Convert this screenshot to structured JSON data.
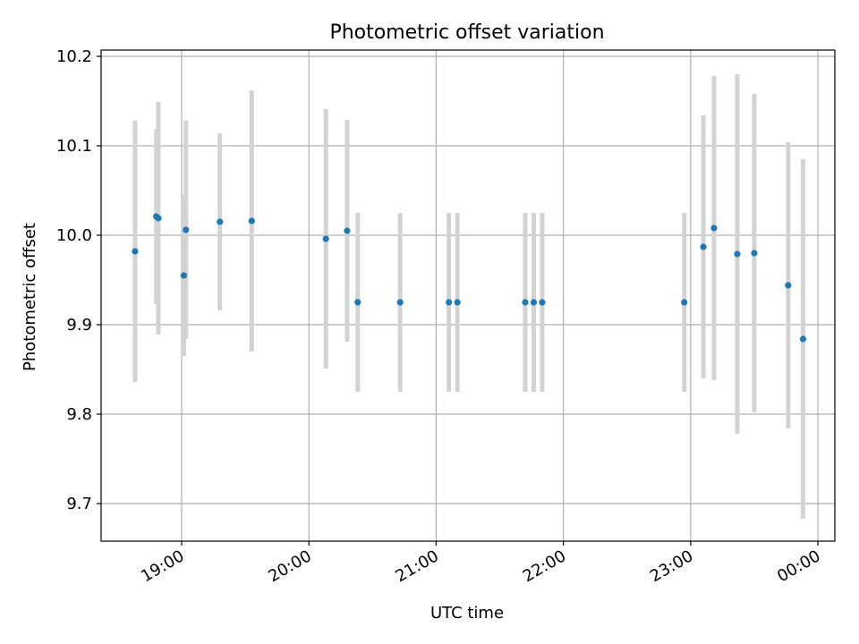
{
  "chart_data": {
    "type": "scatter",
    "title": "Photometric offset variation",
    "xlabel": "UTC time",
    "ylabel": "Photometric offset",
    "x_axis_type": "time",
    "xlim": [
      "18:22",
      "00:08"
    ],
    "ylim": [
      9.658,
      10.207
    ],
    "grid": true,
    "y_ticks": [
      9.7,
      9.8,
      9.9,
      10.0,
      10.1,
      10.2
    ],
    "y_tick_labels": [
      "9.7",
      "9.8",
      "9.9",
      "10.0",
      "10.1",
      "10.2"
    ],
    "x_ticks": [
      "19:00",
      "20:00",
      "21:00",
      "22:00",
      "23:00",
      "00:00"
    ],
    "x_tick_labels": [
      "19:00",
      "20:00",
      "21:00",
      "22:00",
      "23:00",
      "00:00"
    ],
    "marker_color": "#1f77b4",
    "errorbar_color": "#d3d3d3",
    "series": [
      {
        "points": [
          {
            "x": "18:38",
            "y": 9.982,
            "err": 0.146
          },
          {
            "x": "18:48",
            "y": 10.021,
            "err": 0.098
          },
          {
            "x": "18:49",
            "y": 10.019,
            "err": 0.13
          },
          {
            "x": "19:01",
            "y": 9.955,
            "err": 0.09
          },
          {
            "x": "19:02",
            "y": 10.006,
            "err": 0.122
          },
          {
            "x": "19:18",
            "y": 10.015,
            "err": 0.099
          },
          {
            "x": "19:33",
            "y": 10.016,
            "err": 0.146
          },
          {
            "x": "20:08",
            "y": 9.996,
            "err": 0.145
          },
          {
            "x": "20:18",
            "y": 10.005,
            "err": 0.124
          },
          {
            "x": "20:23",
            "y": 9.925,
            "err": 0.1
          },
          {
            "x": "20:43",
            "y": 9.925,
            "err": 0.1
          },
          {
            "x": "21:06",
            "y": 9.925,
            "err": 0.1
          },
          {
            "x": "21:10",
            "y": 9.925,
            "err": 0.1
          },
          {
            "x": "21:42",
            "y": 9.925,
            "err": 0.1
          },
          {
            "x": "21:46",
            "y": 9.925,
            "err": 0.1
          },
          {
            "x": "21:50",
            "y": 9.925,
            "err": 0.1
          },
          {
            "x": "22:57",
            "y": 9.925,
            "err": 0.1
          },
          {
            "x": "23:06",
            "y": 9.987,
            "err": 0.147
          },
          {
            "x": "23:11",
            "y": 10.008,
            "err": 0.17
          },
          {
            "x": "23:22",
            "y": 9.979,
            "err": 0.201
          },
          {
            "x": "23:30",
            "y": 9.98,
            "err": 0.178
          },
          {
            "x": "23:46",
            "y": 9.944,
            "err": 0.16
          },
          {
            "x": "23:53",
            "y": 9.884,
            "err": 0.201
          }
        ]
      }
    ]
  }
}
